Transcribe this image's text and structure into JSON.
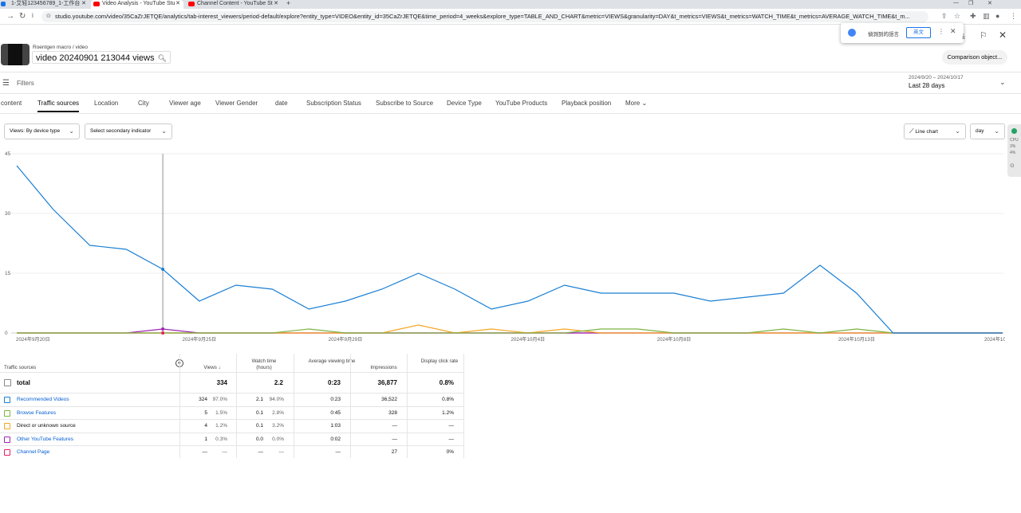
{
  "browser": {
    "tabs": [
      {
        "label": "1-艾轻123456789_1-工作台",
        "icon_color": "#1a73e8"
      },
      {
        "label": "Video Analysis - YouTube Stu",
        "icon_color": "#ff0000"
      },
      {
        "label": "Channel Content - YouTube St",
        "icon_color": "#ff0000"
      }
    ],
    "new_tab": "+",
    "url": "studio.youtube.com/video/35CaZrJETQE/analytics/tab-interest_viewers/period-default/explore?entity_type=VIDEO&entity_id=35CaZrJETQE&time_period=4_weeks&explore_type=TABLE_AND_CHART&metric=VIEWS&granularity=DAY&t_metrics=VIEWS&t_metrics=WATCH_TIME&t_metrics=AVERAGE_WATCH_TIME&t_m..."
  },
  "translate_popup": {
    "text": "偵測到的語言",
    "button": "英文"
  },
  "header": {
    "breadcrumb": "Roentgen macro / video",
    "video_title": "video 20240901 213044 views",
    "comparison_button": "Comparison object..."
  },
  "filters": {
    "label": "Filters",
    "date_range": "2024/9/20 – 2024/10/17",
    "period_label": "Last 28 days"
  },
  "dimension_tabs": [
    {
      "label": "content"
    },
    {
      "label": "Traffic sources",
      "active": true
    },
    {
      "label": "Location"
    },
    {
      "label": "City"
    },
    {
      "label": "Viewer age"
    },
    {
      "label": "Viewer Gender"
    },
    {
      "label": "date"
    },
    {
      "label": "Subscription Status"
    },
    {
      "label": "Subscribe to Source"
    },
    {
      "label": "Device Type"
    },
    {
      "label": "YouTube Products"
    },
    {
      "label": "Playback position"
    },
    {
      "label": "More"
    }
  ],
  "controls": {
    "primary_metric": "Views: By device type",
    "secondary_metric": "Select secondary indicator",
    "chart_type": "Line chart",
    "granularity": "day"
  },
  "side_panel": {
    "lines": [
      "CPU",
      "3%",
      "4%"
    ]
  },
  "chart_data": {
    "type": "line",
    "ylim": [
      0,
      45
    ],
    "yticks": [
      0,
      15,
      30,
      45
    ],
    "x": [
      "2024/9/20",
      "2024/9/21",
      "2024/9/22",
      "2024/9/23",
      "2024/9/24",
      "2024/9/25",
      "2024/9/26",
      "2024/9/27",
      "2024/9/28",
      "2024/9/29",
      "2024/9/30",
      "2024/10/1",
      "2024/10/2",
      "2024/10/3",
      "2024/10/4",
      "2024/10/5",
      "2024/10/6",
      "2024/10/7",
      "2024/10/8",
      "2024/10/9",
      "2024/10/10",
      "2024/10/11",
      "2024/10/12",
      "2024/10/13",
      "2024/10/14",
      "2024/10/15",
      "2024/10/16",
      "2024/10/17"
    ],
    "xtick_labels": [
      "2024年9月20日",
      "2024年9月25日",
      "2024年9月29日",
      "2024年10月4日",
      "2024年10月8日",
      "2024年10月13日",
      "2024年10月17日"
    ],
    "xtick_indices": [
      0,
      5,
      9,
      14,
      18,
      23,
      27
    ],
    "hover_index": 4,
    "series": [
      {
        "color": "#1a7fd4",
        "values": [
          42,
          31,
          22,
          21,
          16,
          8,
          12,
          11,
          6,
          8,
          11,
          15,
          11,
          6,
          8,
          12,
          10,
          10,
          10,
          8,
          9,
          10,
          17,
          10,
          0,
          0,
          0,
          0
        ]
      },
      {
        "color": "#7cb342",
        "values": [
          0,
          0,
          0,
          0,
          0,
          0,
          0,
          0,
          1,
          0,
          0,
          0,
          0,
          0,
          0,
          0,
          1,
          1,
          0,
          0,
          0,
          1,
          0,
          1,
          0,
          0,
          0,
          0
        ]
      },
      {
        "color": "#f5a623",
        "values": [
          0,
          0,
          0,
          0,
          0,
          0,
          0,
          0,
          0,
          0,
          0,
          2,
          0,
          1,
          0,
          1,
          0,
          0,
          0,
          0,
          0,
          0,
          0,
          0,
          0,
          0,
          0,
          0
        ]
      },
      {
        "color": "#9c27b0",
        "values": [
          0,
          0,
          0,
          0,
          1,
          0,
          0,
          0,
          0,
          0,
          0,
          0,
          0,
          0,
          0,
          0,
          0,
          0,
          0,
          0,
          0,
          0,
          0,
          0,
          0,
          0,
          0,
          0
        ]
      },
      {
        "color": "#e91e63",
        "values": [
          0,
          0,
          0,
          0,
          0,
          0,
          0,
          0,
          0,
          0,
          0,
          0,
          0,
          0,
          0,
          0,
          0,
          0,
          0,
          0,
          0,
          0,
          0,
          0,
          0,
          0,
          0,
          0
        ]
      }
    ]
  },
  "table": {
    "headers": {
      "source": "Traffic sources",
      "views": "Views ↓",
      "watch_time": "Watch time (hours)",
      "avg_view": "Average viewing time",
      "impressions": "Impressions",
      "ctr": "Display click rate"
    },
    "total": {
      "label": "total",
      "views": "334",
      "watch_time": "2.2",
      "avg_view": "0:23",
      "impressions": "36,877",
      "ctr": "0.8%"
    },
    "rows": [
      {
        "label": "Recommended Videos",
        "color": "#1a7fd4",
        "link": true,
        "views": "324",
        "views_pct": "97.0%",
        "watch": "2.1",
        "watch_pct": "94.0%",
        "avg": "0:23",
        "impr": "36,522",
        "ctr": "0.8%"
      },
      {
        "label": "Browse Features",
        "color": "#7cb342",
        "link": true,
        "views": "5",
        "views_pct": "1.5%",
        "watch": "0.1",
        "watch_pct": "2.8%",
        "avg": "0:45",
        "impr": "328",
        "ctr": "1.2%"
      },
      {
        "label": "Direct or unknown source",
        "color": "#f5a623",
        "link": false,
        "views": "4",
        "views_pct": "1.2%",
        "watch": "0.1",
        "watch_pct": "3.2%",
        "avg": "1:03",
        "impr": "—",
        "ctr": "—"
      },
      {
        "label": "Other YouTube Features",
        "color": "#9c27b0",
        "link": true,
        "views": "1",
        "views_pct": "0.3%",
        "watch": "0.0",
        "watch_pct": "0.0%",
        "avg": "0:02",
        "impr": "—",
        "ctr": "—"
      },
      {
        "label": "Channel Page",
        "color": "#e91e63",
        "link": true,
        "views": "—",
        "views_pct": "—",
        "watch": "—",
        "watch_pct": "—",
        "avg": "—",
        "impr": "27",
        "ctr": "0%"
      }
    ]
  }
}
